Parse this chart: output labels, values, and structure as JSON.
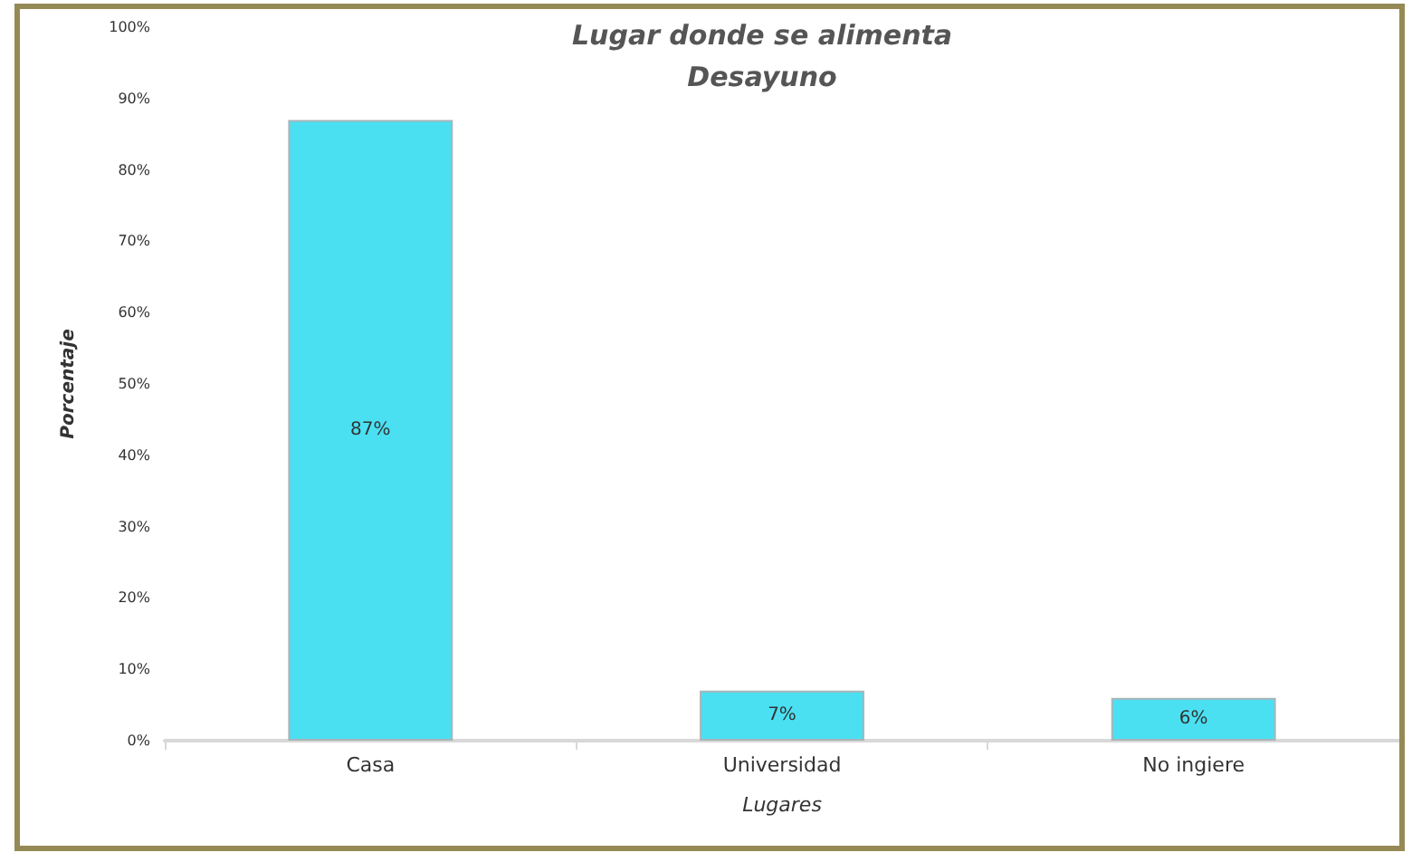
{
  "chart_data": {
    "type": "bar",
    "title": "Lugar donde se alimenta",
    "subtitle": "Desayuno",
    "xlabel": "Lugares",
    "ylabel": "Porcentaje",
    "categories": [
      "Casa",
      "Universidad",
      "No ingiere"
    ],
    "values": [
      87,
      7,
      6
    ],
    "color": "#4ae0f2",
    "value_labels": [
      "87%",
      "7%",
      "6%"
    ],
    "ylim": [
      0,
      100
    ],
    "yticks": [
      {
        "value": 0,
        "label": "0%"
      },
      {
        "value": 10,
        "label": "10%"
      },
      {
        "value": 20,
        "label": "20%"
      },
      {
        "value": 30,
        "label": "30%"
      },
      {
        "value": 40,
        "label": "40%"
      },
      {
        "value": 50,
        "label": "50%"
      },
      {
        "value": 60,
        "label": "60%"
      },
      {
        "value": 70,
        "label": "70%"
      },
      {
        "value": 80,
        "label": "80%"
      },
      {
        "value": 90,
        "label": "90%"
      },
      {
        "value": 100,
        "label": "100%"
      }
    ],
    "grid": false
  }
}
